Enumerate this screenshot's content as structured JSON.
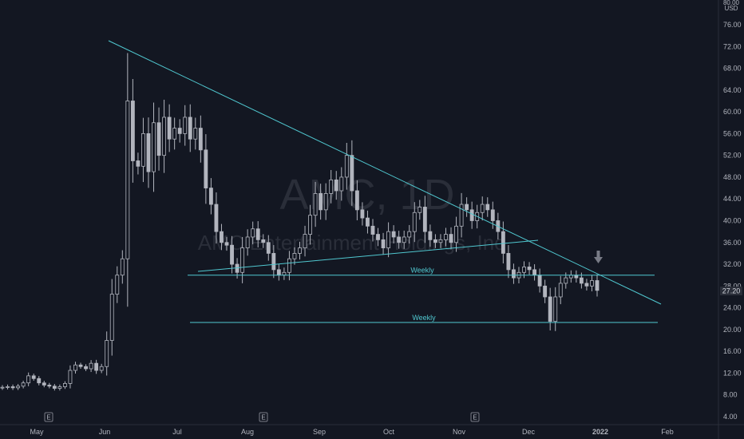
{
  "watermark": {
    "ticker": "AMC, 1D",
    "name": "AMC Entertainment Holdings, Inc"
  },
  "price_axis": {
    "currency_line1": "80.00",
    "currency_line2": "USD",
    "last_price_label": "27.20"
  },
  "colors": {
    "background": "#131722",
    "candle": "#b2b5be",
    "candle_up_body": "#131722",
    "trendline": "#50c8d0",
    "arrow": "#787b86",
    "price_tag": "#2a2e39",
    "earnings_badge": "#787b86"
  },
  "horizontal_lines": [
    {
      "label": "Weekly",
      "price": 30.0
    },
    {
      "label": "Weekly",
      "price": 21.3
    }
  ],
  "earnings_markers": [
    {
      "label": "E",
      "month": "May"
    },
    {
      "label": "E",
      "month": "Aug"
    },
    {
      "label": "E",
      "month": "Nov"
    }
  ],
  "icons": {
    "down_arrow": "arrow-down-icon",
    "earnings": "earnings-badge-icon"
  },
  "chart_data": {
    "type": "candlestick",
    "title": "",
    "xlabel": "",
    "ylabel": "",
    "ylim": [
      2,
      81
    ],
    "y_ticks": [
      4,
      8,
      12,
      16,
      20,
      24,
      28,
      32,
      36,
      40,
      44,
      48,
      52,
      56,
      60,
      64,
      68,
      72,
      76
    ],
    "x_ticks": [
      "May",
      "Jun",
      "Jul",
      "Aug",
      "Sep",
      "Oct",
      "Nov",
      "Dec",
      "2022",
      "Feb"
    ],
    "last_price": 27.2,
    "grid": false,
    "close_series": [
      9.4,
      9.5,
      9.3,
      9.6,
      10.2,
      11.5,
      11.0,
      10.2,
      9.8,
      9.6,
      9.2,
      9.5,
      10.1,
      12.5,
      13.5,
      13.2,
      12.8,
      13.8,
      12.5,
      13.2,
      18.0,
      26.5,
      30.0,
      33.0,
      62.0,
      51.0,
      50.0,
      56.0,
      49.0,
      58.0,
      52.0,
      59.0,
      55.0,
      57.0,
      56.0,
      59.0,
      55.0,
      57.0,
      53.0,
      46.0,
      43.0,
      38.0,
      36.0,
      35.5,
      32.0,
      30.5,
      35.0,
      37.0,
      38.5,
      36.5,
      36.0,
      34.0,
      31.0,
      30.0,
      30.5,
      33.0,
      34.0,
      35.0,
      37.5,
      41.0,
      45.0,
      42.0,
      45.0,
      47.5,
      45.5,
      48.0,
      52.0,
      45.5,
      42.0,
      40.5,
      39.0,
      37.5,
      36.5,
      35.0,
      38.0,
      37.0,
      36.0,
      37.0,
      38.0,
      41.5,
      42.5,
      38.0,
      36.5,
      36.0,
      36.5,
      37.5,
      36.0,
      39.0,
      43.0,
      42.0,
      40.0,
      41.5,
      43.0,
      42.0,
      40.0,
      38.0,
      34.0,
      31.0,
      29.5,
      30.5,
      31.5,
      31.0,
      30.0,
      28.0,
      26.0,
      21.5,
      26.0,
      28.5,
      29.5,
      30.0,
      29.5,
      28.5,
      28.0,
      29.0,
      27.2
    ]
  }
}
